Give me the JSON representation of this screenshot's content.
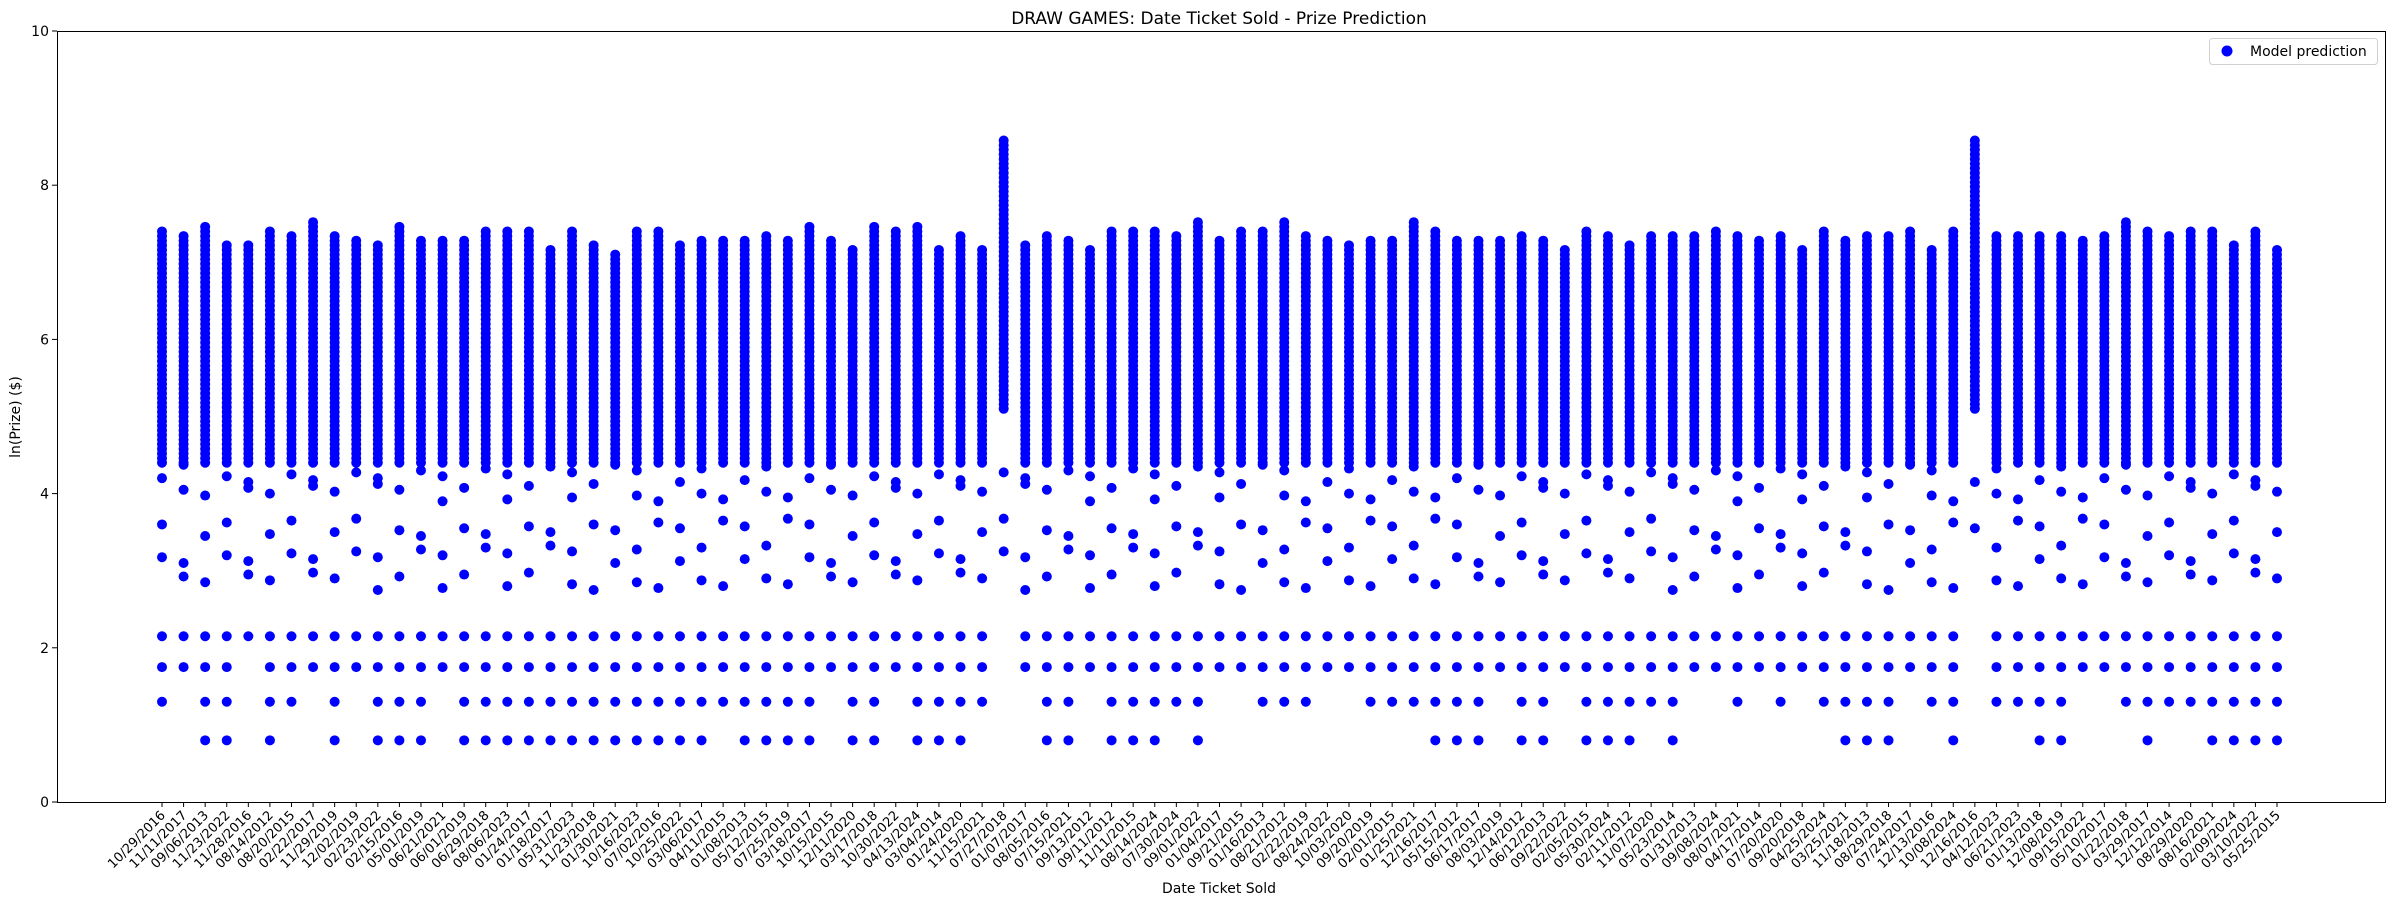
{
  "chart_data": {
    "type": "scatter",
    "title": "DRAW GAMES: Date Ticket Sold - Prize Prediction",
    "xlabel": "Date Ticket Sold",
    "ylabel": "ln(Prize) ($)",
    "ylim": [
      0,
      10
    ],
    "yticks": [
      0,
      2,
      4,
      6,
      8,
      10
    ],
    "grid": false,
    "legend_position": "top-right",
    "marker_color": "#0000ff",
    "categories": [
      "10/29/2016",
      "11/11/2017",
      "09/06/2013",
      "11/23/2022",
      "11/28/2016",
      "08/14/2012",
      "08/20/2015",
      "02/22/2017",
      "11/29/2019",
      "12/02/2019",
      "02/23/2022",
      "02/15/2016",
      "05/01/2019",
      "06/21/2021",
      "06/01/2019",
      "06/29/2018",
      "08/06/2023",
      "01/24/2017",
      "01/18/2017",
      "05/31/2023",
      "11/23/2018",
      "01/30/2021",
      "10/16/2023",
      "07/02/2016",
      "10/25/2022",
      "03/06/2017",
      "04/11/2015",
      "01/08/2013",
      "05/12/2015",
      "07/25/2019",
      "03/18/2017",
      "10/15/2015",
      "12/11/2020",
      "03/17/2018",
      "10/30/2022",
      "04/13/2024",
      "03/04/2014",
      "01/24/2020",
      "11/15/2021",
      "07/27/2018",
      "01/07/2017",
      "08/05/2016",
      "07/15/2021",
      "09/13/2012",
      "09/11/2012",
      "11/11/2015",
      "08/14/2024",
      "07/30/2024",
      "09/01/2022",
      "01/04/2017",
      "09/21/2015",
      "01/16/2013",
      "08/21/2012",
      "02/22/2019",
      "08/24/2022",
      "10/03/2020",
      "09/20/2019",
      "02/01/2015",
      "01/25/2021",
      "12/16/2017",
      "05/15/2012",
      "06/17/2017",
      "08/03/2019",
      "12/14/2012",
      "06/12/2013",
      "09/22/2022",
      "02/05/2015",
      "05/30/2024",
      "02/11/2012",
      "11/07/2020",
      "05/23/2014",
      "01/31/2013",
      "09/08/2024",
      "08/07/2021",
      "04/17/2014",
      "07/20/2020",
      "09/20/2018",
      "04/25/2024",
      "03/25/2021",
      "11/18/2013",
      "08/29/2018",
      "07/24/2017",
      "12/13/2016",
      "10/08/2024",
      "12/16/2016",
      "04/12/2023",
      "06/21/2023",
      "01/13/2018",
      "12/08/2019",
      "09/15/2022",
      "05/10/2017",
      "01/22/2018",
      "03/29/2017",
      "12/12/2014",
      "08/29/2020",
      "08/16/2021",
      "02/09/2024",
      "03/10/2022",
      "05/25/2015"
    ],
    "series": [
      {
        "name": "Model prediction",
        "values": []
      }
    ],
    "columns": [
      {
        "max": 7.45,
        "min": 0.85
      },
      {
        "max": 7.35,
        "min": 1.75
      },
      {
        "max": 7.5,
        "min": 0.8
      },
      {
        "max": 7.25,
        "min": 0.8
      },
      {
        "max": 7.25,
        "min": 1.8
      },
      {
        "max": 7.45,
        "min": 0.8
      },
      {
        "max": 7.35,
        "min": 0.85
      },
      {
        "max": 7.55,
        "min": 1.75
      },
      {
        "max": 7.35,
        "min": 0.8
      },
      {
        "max": 7.3,
        "min": 1.7
      },
      {
        "max": 7.25,
        "min": 0.8
      },
      {
        "max": 7.5,
        "min": 0.8
      },
      {
        "max": 7.3,
        "min": 0.8
      },
      {
        "max": 7.3,
        "min": 1.75
      },
      {
        "max": 7.3,
        "min": 0.8
      },
      {
        "max": 7.4,
        "min": 0.8
      },
      {
        "max": 7.45,
        "min": 0.8
      },
      {
        "max": 7.4,
        "min": 0.8
      },
      {
        "max": 7.2,
        "min": 0.8
      },
      {
        "max": 7.4,
        "min": 0.8
      },
      {
        "max": 7.25,
        "min": 0.8
      },
      {
        "max": 7.15,
        "min": 0.8
      },
      {
        "max": 7.4,
        "min": 0.8
      },
      {
        "max": 7.45,
        "min": 0.8
      },
      {
        "max": 7.25,
        "min": 0.8
      },
      {
        "max": 7.3,
        "min": 0.8
      },
      {
        "max": 7.3,
        "min": 1.25
      },
      {
        "max": 7.3,
        "min": 0.8
      },
      {
        "max": 7.35,
        "min": 0.8
      },
      {
        "max": 7.3,
        "min": 0.8
      },
      {
        "max": 7.5,
        "min": 0.8
      },
      {
        "max": 7.3,
        "min": 1.75
      },
      {
        "max": 7.2,
        "min": 0.8
      },
      {
        "max": 7.5,
        "min": 0.8
      },
      {
        "max": 7.45,
        "min": 1.5
      },
      {
        "max": 7.5,
        "min": 0.8
      },
      {
        "max": 7.2,
        "min": 0.8
      },
      {
        "max": 7.35,
        "min": 0.8
      },
      {
        "max": 7.2,
        "min": 0.85
      },
      {
        "max": 8.6,
        "min": 2.7
      },
      {
        "max": 7.25,
        "min": 1.5
      },
      {
        "max": 7.35,
        "min": 0.8
      },
      {
        "max": 7.3,
        "min": 0.8
      },
      {
        "max": 7.2,
        "min": 1.4
      },
      {
        "max": 7.4,
        "min": 0.8
      },
      {
        "max": 7.4,
        "min": 0.8
      },
      {
        "max": 7.4,
        "min": 0.8
      },
      {
        "max": 7.35,
        "min": 1.25
      },
      {
        "max": 7.55,
        "min": 0.8
      },
      {
        "max": 7.3,
        "min": 1.7
      },
      {
        "max": 7.45,
        "min": 1.75
      },
      {
        "max": 7.4,
        "min": 1.3
      },
      {
        "max": 7.55,
        "min": 0.85
      },
      {
        "max": 7.35,
        "min": 0.85
      },
      {
        "max": 7.3,
        "min": 1.75
      },
      {
        "max": 7.25,
        "min": 1.75
      },
      {
        "max": 7.3,
        "min": 0.85
      },
      {
        "max": 7.3,
        "min": 0.85
      },
      {
        "max": 7.55,
        "min": 0.85
      },
      {
        "max": 7.45,
        "min": 0.8
      },
      {
        "max": 7.3,
        "min": 0.8
      },
      {
        "max": 7.3,
        "min": 0.8
      },
      {
        "max": 7.3,
        "min": 1.75
      },
      {
        "max": 7.35,
        "min": 0.8
      },
      {
        "max": 7.3,
        "min": 0.8
      },
      {
        "max": 7.2,
        "min": 1.75
      },
      {
        "max": 7.4,
        "min": 0.8
      },
      {
        "max": 7.35,
        "min": 0.8
      },
      {
        "max": 7.25,
        "min": 0.8
      },
      {
        "max": 7.35,
        "min": 1.25
      },
      {
        "max": 7.35,
        "min": 0.8
      },
      {
        "max": 7.35,
        "min": 1.75
      },
      {
        "max": 7.45,
        "min": 1.75
      },
      {
        "max": 7.35,
        "min": 0.85
      },
      {
        "max": 7.3,
        "min": 1.75
      },
      {
        "max": 7.35,
        "min": 0.85
      },
      {
        "max": 7.2,
        "min": 1.75
      },
      {
        "max": 7.4,
        "min": 1.25
      },
      {
        "max": 7.3,
        "min": 0.8
      },
      {
        "max": 7.35,
        "min": 0.8
      },
      {
        "max": 7.35,
        "min": 0.8
      },
      {
        "max": 7.4,
        "min": 1.35
      },
      {
        "max": 7.2,
        "min": 1.3
      },
      {
        "max": 7.45,
        "min": 0.8
      },
      {
        "max": 8.6,
        "min": 3.35
      },
      {
        "max": 7.35,
        "min": 1.25
      },
      {
        "max": 7.35,
        "min": 1.25
      },
      {
        "max": 7.35,
        "min": 0.8
      },
      {
        "max": 7.35,
        "min": 0.8
      },
      {
        "max": 7.3,
        "min": 1.75
      },
      {
        "max": 7.35,
        "min": 1.75
      },
      {
        "max": 7.55,
        "min": 0.85
      },
      {
        "max": 7.45,
        "min": 0.8
      },
      {
        "max": 7.35,
        "min": 1.3
      },
      {
        "max": 7.4,
        "min": 0.85
      },
      {
        "max": 7.4,
        "min": 0.8
      },
      {
        "max": 7.25,
        "min": 0.8
      },
      {
        "max": 7.45,
        "min": 0.8
      },
      {
        "max": 7.2,
        "min": 0.8
      }
    ]
  }
}
